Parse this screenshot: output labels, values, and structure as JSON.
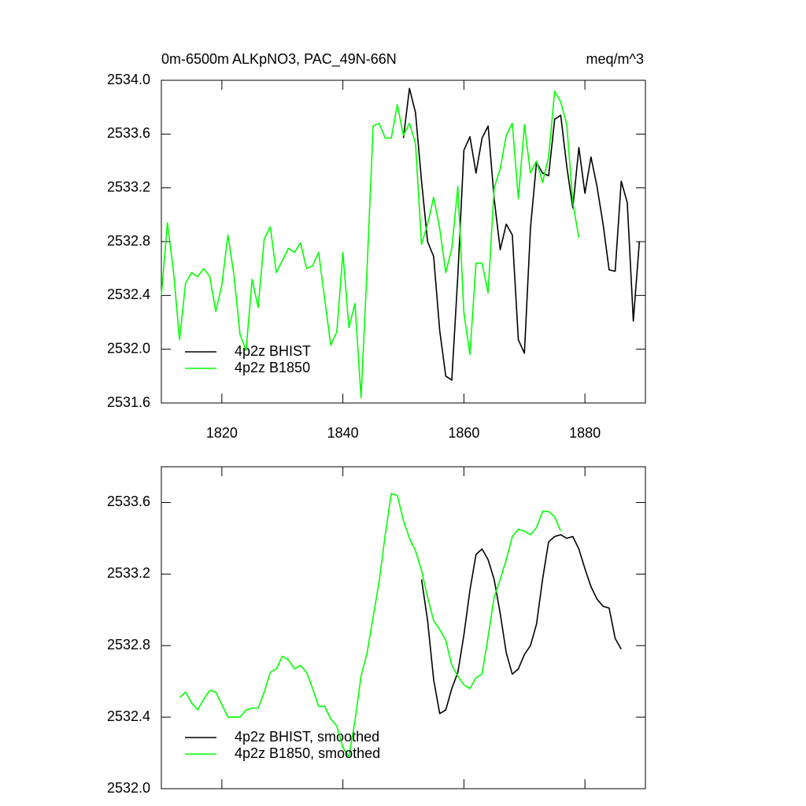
{
  "chart_data": [
    {
      "type": "line",
      "title": "0m-6500m ALKpNO3, PAC_49N-66N",
      "units": "meq/m^3",
      "x": [
        1810,
        1811,
        1812,
        1813,
        1814,
        1815,
        1816,
        1817,
        1818,
        1819,
        1820,
        1821,
        1822,
        1823,
        1824,
        1825,
        1826,
        1827,
        1828,
        1829,
        1830,
        1831,
        1832,
        1833,
        1834,
        1835,
        1836,
        1837,
        1838,
        1839,
        1840,
        1841,
        1842,
        1843,
        1844,
        1845,
        1846,
        1847,
        1848,
        1849,
        1850,
        1851,
        1852,
        1853,
        1854,
        1855,
        1856,
        1857,
        1858,
        1859,
        1860,
        1861,
        1862,
        1863,
        1864,
        1865,
        1866,
        1867,
        1868,
        1869,
        1870,
        1871,
        1872,
        1873,
        1874,
        1875,
        1876,
        1877,
        1878,
        1879,
        1880,
        1881,
        1882,
        1883,
        1884,
        1885,
        1886,
        1887,
        1888,
        1889
      ],
      "series": [
        {
          "name": "4p2z BHIST",
          "color": "#000000",
          "values": [
            null,
            null,
            null,
            null,
            null,
            null,
            null,
            null,
            null,
            null,
            null,
            null,
            null,
            null,
            null,
            null,
            null,
            null,
            null,
            null,
            null,
            null,
            null,
            null,
            null,
            null,
            null,
            null,
            null,
            null,
            null,
            null,
            null,
            null,
            null,
            null,
            null,
            null,
            null,
            null,
            2533.57,
            2533.94,
            2533.76,
            2533.25,
            2532.8,
            2532.69,
            2532.14,
            2531.8,
            2531.77,
            2532.55,
            2533.48,
            2533.58,
            2533.31,
            2533.57,
            2533.66,
            2533.12,
            2532.74,
            2532.93,
            2532.85,
            2532.07,
            2531.97,
            2532.9,
            2533.39,
            2533.31,
            2533.29,
            2533.71,
            2533.74,
            2533.36,
            2533.05,
            2533.5,
            2533.16,
            2533.43,
            2533.21,
            2532.93,
            2532.59,
            2532.58,
            2533.25,
            2533.09,
            2532.21,
            2532.8
          ]
        },
        {
          "name": "4p2z B1850",
          "color": "#00ff00",
          "values": [
            2532.4,
            2532.94,
            2532.58,
            2532.07,
            2532.49,
            2532.57,
            2532.54,
            2532.6,
            2532.54,
            2532.28,
            2532.48,
            2532.85,
            2532.55,
            2532.11,
            2531.99,
            2532.52,
            2532.31,
            2532.82,
            2532.91,
            2532.57,
            2532.66,
            2532.75,
            2532.72,
            2532.79,
            2532.6,
            2532.62,
            2532.72,
            2532.37,
            2532.03,
            2532.13,
            2532.72,
            2532.16,
            2532.34,
            2531.64,
            2532.6,
            2533.66,
            2533.68,
            2533.57,
            2533.57,
            2533.82,
            2533.59,
            2533.68,
            2533.53,
            2532.78,
            2532.93,
            2533.13,
            2532.9,
            2532.57,
            2532.75,
            2533.21,
            2532.27,
            2531.96,
            2532.64,
            2532.64,
            2532.42,
            2533.2,
            2533.34,
            2533.59,
            2533.68,
            2533.12,
            2533.67,
            2533.31,
            2533.4,
            2533.24,
            2533.43,
            2533.92,
            2533.84,
            2533.67,
            2533.09,
            2532.83,
            null,
            null,
            null,
            null,
            null,
            null,
            null,
            null,
            null,
            null
          ]
        }
      ],
      "xlim": [
        1810,
        1890
      ],
      "xticks": [
        1820,
        1840,
        1860,
        1880
      ],
      "ylim": [
        2531.6,
        2534.0
      ],
      "yticks": [
        2531.6,
        {
          "value": 2532,
          "label": "2532.0"
        },
        2532.4,
        2532.8,
        2533.2,
        2533.6,
        {
          "value": 2534,
          "label": "2534.0"
        }
      ],
      "legend": "lower left"
    },
    {
      "type": "line",
      "x": [
        1813,
        1814,
        1815,
        1816,
        1817,
        1818,
        1819,
        1820,
        1821,
        1822,
        1823,
        1824,
        1825,
        1826,
        1827,
        1828,
        1829,
        1830,
        1831,
        1832,
        1833,
        1834,
        1835,
        1836,
        1837,
        1838,
        1839,
        1840,
        1841,
        1842,
        1843,
        1844,
        1845,
        1846,
        1847,
        1848,
        1849,
        1850,
        1851,
        1852,
        1853,
        1854,
        1855,
        1856,
        1857,
        1858,
        1859,
        1860,
        1861,
        1862,
        1863,
        1864,
        1865,
        1866,
        1867,
        1868,
        1869,
        1870,
        1871,
        1872,
        1873,
        1874,
        1875,
        1876,
        1877,
        1878,
        1879,
        1880,
        1881,
        1882,
        1883,
        1884,
        1885,
        1886
      ],
      "series": [
        {
          "name": "4p2z BHIST, smoothed",
          "color": "#000000",
          "values": [
            null,
            null,
            null,
            null,
            null,
            null,
            null,
            null,
            null,
            null,
            null,
            null,
            null,
            null,
            null,
            null,
            null,
            null,
            null,
            null,
            null,
            null,
            null,
            null,
            null,
            null,
            null,
            null,
            null,
            null,
            null,
            null,
            null,
            null,
            null,
            null,
            null,
            null,
            null,
            null,
            2533.17,
            2532.94,
            2532.61,
            2532.42,
            2532.44,
            2532.56,
            2532.65,
            2532.86,
            2533.11,
            2533.31,
            2533.34,
            2533.28,
            2533.17,
            2532.98,
            2532.76,
            2532.64,
            2532.67,
            2532.75,
            2532.8,
            2532.92,
            2533.17,
            2533.38,
            2533.41,
            2533.42,
            2533.4,
            2533.41,
            2533.34,
            2533.23,
            2533.13,
            2533.06,
            2533.02,
            2533.01,
            2532.84,
            2532.78
          ]
        },
        {
          "name": "4p2z B1850, smoothed",
          "color": "#00ff00",
          "values": [
            2532.51,
            2532.54,
            2532.48,
            2532.44,
            2532.5,
            2532.55,
            2532.54,
            2532.47,
            2532.4,
            2532.4,
            2532.4,
            2532.44,
            2532.45,
            2532.45,
            2532.54,
            2532.65,
            2532.67,
            2532.74,
            2532.72,
            2532.67,
            2532.69,
            2532.65,
            2532.56,
            2532.46,
            2532.46,
            2532.39,
            2532.35,
            2532.23,
            2532.18,
            2532.38,
            2532.63,
            2532.76,
            2532.96,
            2533.16,
            2533.42,
            2533.65,
            2533.64,
            2533.5,
            2533.4,
            2533.33,
            2533.22,
            2533.07,
            2532.94,
            2532.89,
            2532.83,
            2532.69,
            2532.63,
            2532.58,
            2532.56,
            2532.62,
            2532.64,
            2532.85,
            2533.07,
            2533.17,
            2533.28,
            2533.41,
            2533.45,
            2533.44,
            2533.42,
            2533.46,
            2533.55,
            2533.55,
            2533.52,
            2533.44,
            null,
            null,
            null,
            null,
            null,
            null,
            null,
            null,
            null,
            null
          ]
        }
      ],
      "xlim": [
        1810,
        1890
      ],
      "xticks": [
        1820,
        1840,
        1860,
        1880
      ],
      "ylim": [
        2532.0,
        2533.8
      ],
      "yticks": [
        {
          "value": 2532,
          "label": "2532.0"
        },
        2532.4,
        2532.8,
        2533.2,
        2533.6
      ],
      "legend": "lower left"
    }
  ]
}
